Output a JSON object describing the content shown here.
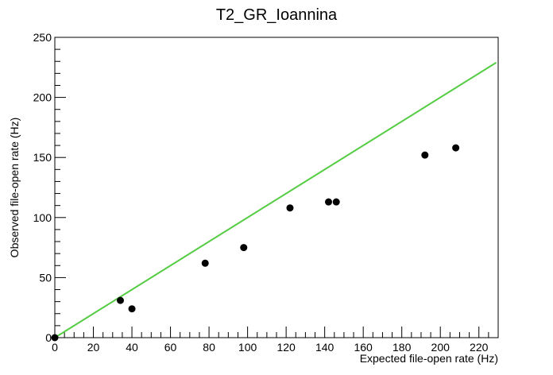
{
  "chart_data": {
    "type": "scatter",
    "title": "T2_GR_Ioannina",
    "xlabel": "Expected file-open rate (Hz)",
    "ylabel": "Observed file-open rate (Hz)",
    "xlim": [
      0,
      230
    ],
    "ylim": [
      0,
      250
    ],
    "x_ticks": [
      0,
      20,
      40,
      60,
      80,
      100,
      120,
      140,
      160,
      180,
      200,
      220
    ],
    "y_ticks": [
      0,
      50,
      100,
      150,
      200,
      250
    ],
    "grid": false,
    "points": [
      {
        "x": 0,
        "y": 0
      },
      {
        "x": 34,
        "y": 31
      },
      {
        "x": 40,
        "y": 24
      },
      {
        "x": 78,
        "y": 62
      },
      {
        "x": 98,
        "y": 75
      },
      {
        "x": 122,
        "y": 108
      },
      {
        "x": 142,
        "y": 113
      },
      {
        "x": 146,
        "y": 113
      },
      {
        "x": 192,
        "y": 152
      },
      {
        "x": 208,
        "y": 158
      }
    ],
    "reference_line": {
      "x": [
        0,
        229
      ],
      "y": [
        0,
        229
      ],
      "color": "#55cc44"
    },
    "marker_color": "#000000"
  }
}
